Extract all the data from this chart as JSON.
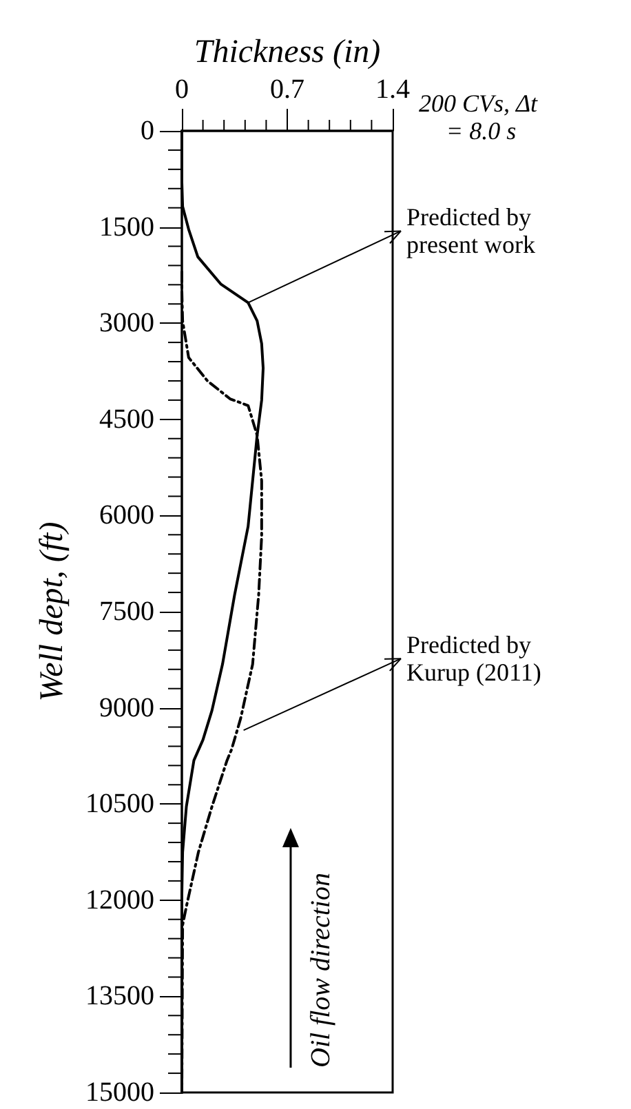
{
  "chart_data": {
    "type": "line",
    "xlabel": "Thickness (in)",
    "ylabel": "Well dept, (ft)",
    "xlim": [
      0,
      1.4
    ],
    "xticks": [
      0,
      0.7,
      1.4
    ],
    "ylim": [
      15000,
      0
    ],
    "yticks": [
      0,
      1500,
      3000,
      4500,
      6000,
      7500,
      9000,
      10500,
      12000,
      13500,
      15000
    ],
    "marker": "none",
    "series": [
      {
        "color": "#000000",
        "line_style": "solid",
        "x": [
          0,
          0,
          0.005,
          0.045,
          0.106,
          0.26,
          0.44,
          0.5,
          0.53,
          0.54,
          0.53,
          0.5,
          0.44,
          0.35,
          0.27,
          0.2,
          0.14,
          0.08,
          0.03,
          0.005,
          0,
          0
        ],
        "values": [
          0,
          800,
          1180,
          1535,
          1965,
          2393,
          2680,
          2965,
          3320,
          3700,
          4200,
          4750,
          6170,
          7240,
          8320,
          9040,
          9500,
          9820,
          10540,
          11250,
          11900,
          15000
        ]
      },
      {
        "color": "#000000",
        "line_style": "dashed",
        "x": [
          0,
          0,
          0.005,
          0.045,
          0.17,
          0.32,
          0.44,
          0.5,
          0.53,
          0.53,
          0.51,
          0.47,
          0.39,
          0.33,
          0.3,
          0.2,
          0.11,
          0.03,
          0.005,
          0
        ],
        "values": [
          2200,
          2500,
          2965,
          3535,
          3900,
          4180,
          4285,
          4750,
          5460,
          6320,
          7240,
          8320,
          9170,
          9650,
          9820,
          10540,
          11250,
          12100,
          12390,
          15000
        ]
      }
    ],
    "annotations": [
      "200 CVs, Δt = 8.0 s",
      {
        "text": "Predicted by present work",
        "x": 0.44,
        "y": 2680
      },
      {
        "text": "Predicted by Kurup (2011)",
        "x": 0.41,
        "y": 9350
      },
      "Oil flow direction"
    ]
  }
}
